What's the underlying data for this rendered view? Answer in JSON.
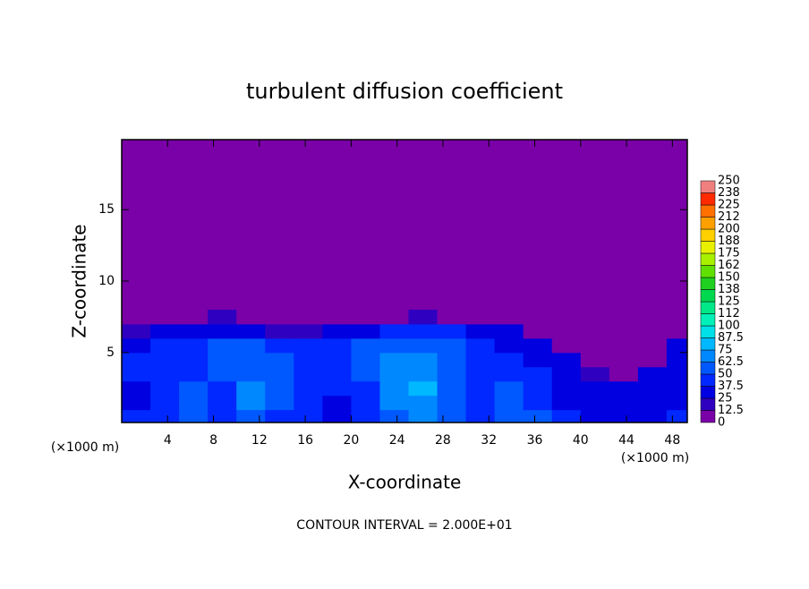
{
  "chart_data": {
    "type": "heatmap",
    "title": "turbulent diffusion coefficient",
    "x_label": "X-coordinate",
    "y_label": "Z-coordinate",
    "unit_label": "(×1000 m)",
    "annotation": "CONTOUR INTERVAL = 2.000E+01",
    "xlim": [
      0,
      49.3
    ],
    "ylim": [
      0.1,
      19.9
    ],
    "xticks": [
      4,
      8,
      12,
      16,
      20,
      24,
      28,
      32,
      36,
      40,
      44,
      48
    ],
    "yticks": [
      5,
      10,
      15
    ],
    "x": [
      1.25,
      3.75,
      6.25,
      8.75,
      11.25,
      13.75,
      16.25,
      18.75,
      21.25,
      23.75,
      26.25,
      28.75,
      31.25,
      33.75,
      36.25,
      38.75,
      41.25,
      43.75,
      46.25,
      48.75
    ],
    "z": [
      0.5,
      1.5,
      2.5,
      3.5,
      4.5,
      5.5,
      6.5,
      7.5
    ],
    "values": [
      [
        40,
        45,
        60,
        40,
        55,
        45,
        40,
        30,
        40,
        62,
        65,
        55,
        45,
        60,
        50,
        40,
        30,
        30,
        35,
        40
      ],
      [
        35,
        40,
        55,
        45,
        70,
        50,
        40,
        35,
        45,
        65,
        70,
        60,
        40,
        55,
        45,
        35,
        30,
        30,
        30,
        35
      ],
      [
        35,
        45,
        50,
        45,
        65,
        55,
        45,
        40,
        45,
        70,
        75,
        60,
        45,
        50,
        40,
        35,
        30,
        25,
        30,
        35
      ],
      [
        40,
        45,
        45,
        50,
        60,
        60,
        45,
        40,
        50,
        70,
        70,
        55,
        45,
        45,
        40,
        30,
        20,
        5,
        25,
        35
      ],
      [
        40,
        40,
        45,
        55,
        55,
        55,
        45,
        45,
        50,
        65,
        65,
        50,
        40,
        40,
        35,
        25,
        5,
        5,
        5,
        30
      ],
      [
        35,
        40,
        40,
        50,
        50,
        45,
        45,
        45,
        50,
        55,
        60,
        50,
        40,
        35,
        30,
        5,
        5,
        5,
        5,
        25
      ],
      [
        20,
        25,
        30,
        35,
        30,
        20,
        20,
        30,
        35,
        40,
        45,
        40,
        35,
        25,
        5,
        5,
        5,
        5,
        5,
        5
      ],
      [
        5,
        5,
        5,
        20,
        5,
        5,
        5,
        5,
        5,
        5,
        20,
        5,
        5,
        5,
        5,
        5,
        5,
        5,
        5,
        5
      ]
    ],
    "colorbar_levels": [
      0,
      12.5,
      25,
      37.5,
      50,
      62.5,
      75,
      87.5,
      100,
      112,
      125,
      138,
      150,
      162,
      175,
      188,
      200,
      212,
      225,
      238,
      250
    ],
    "colorbar_colors": [
      "#7a00a8",
      "#3000c0",
      "#0000e0",
      "#0028ff",
      "#0058ff",
      "#0088ff",
      "#00b8ff",
      "#00e0e8",
      "#00f0b8",
      "#00e888",
      "#00d850",
      "#20d020",
      "#60e000",
      "#a8f000",
      "#e8f000",
      "#ffd000",
      "#ffa000",
      "#ff7000",
      "#ff2a00",
      "#f08080"
    ]
  }
}
